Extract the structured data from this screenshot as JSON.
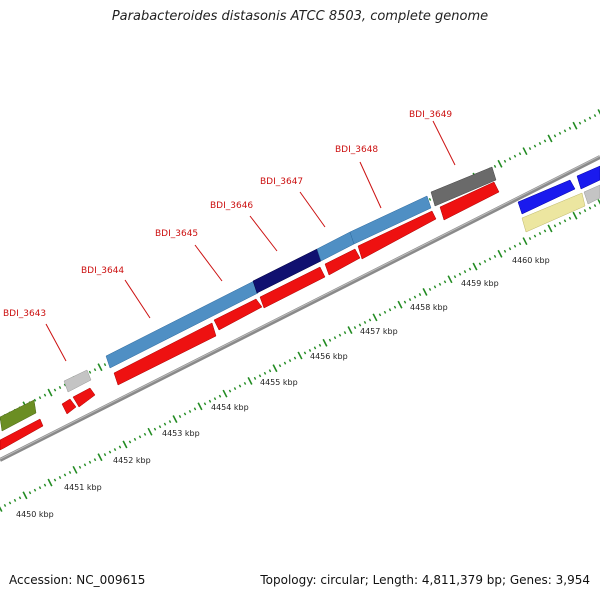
{
  "title": "Parabacteroides distasonis ATCC 8503, complete genome",
  "footer": {
    "accession": "Accession: NC_009615",
    "summary": "Topology: circular; Length: 4,811,379 bp; Genes: 3,954"
  },
  "kbp_labels": [
    "4450 kbp",
    "4451 kbp",
    "4452 kbp",
    "4453 kbp",
    "4454 kbp",
    "4455 kbp",
    "4456 kbp",
    "4457 kbp",
    "4458 kbp",
    "4459 kbp",
    "4460 kbp"
  ],
  "gene_labels": [
    "BDI_3643",
    "BDI_3644",
    "BDI_3645",
    "BDI_3646",
    "BDI_3647",
    "BDI_3648",
    "BDI_3649"
  ],
  "colors": {
    "red": "#ee1111",
    "steelblue": "#4f8fc4",
    "navy": "#101070",
    "gray": "#6a6a6a",
    "lightgray": "#c4c4c4",
    "olive": "#6b8e23",
    "blue": "#1a1aee",
    "khaki": "#ece6a0",
    "tick": "#228b22",
    "backbone": "#8a8a8a"
  }
}
